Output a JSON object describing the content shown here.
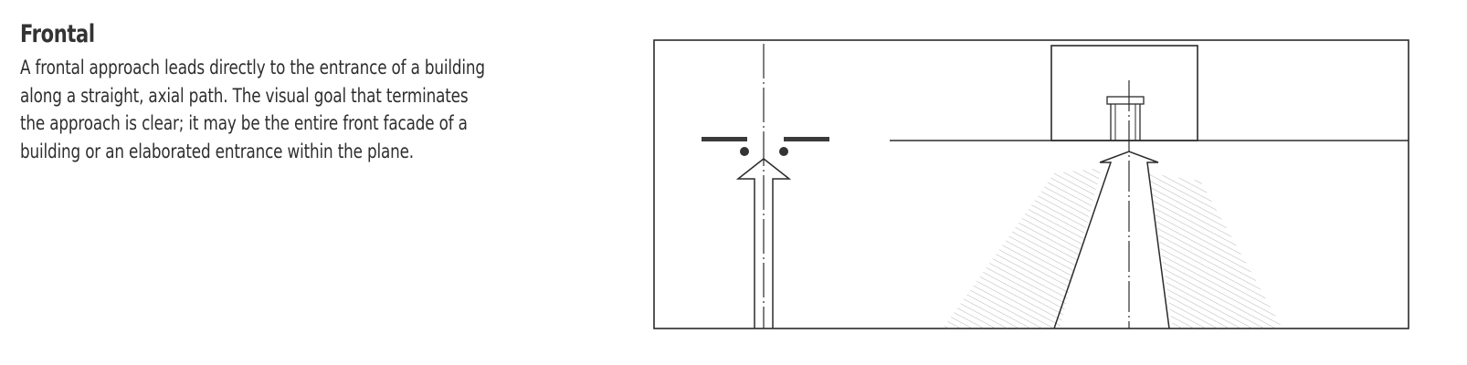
{
  "section": {
    "heading": "Frontal",
    "lines": [
      "A frontal approach leads directly to the entrance of a building",
      "along a straight, axial path. The visual goal that terminates",
      "the approach is clear; it may be the entire front facade of a",
      "building or an elaborated entrance within the plane."
    ]
  },
  "colors": {
    "text": "#2e2e2e",
    "ink": "#2b2b2b",
    "hatch": "#6a6a6a"
  },
  "icons": [
    "approach-arrow-icon",
    "entrance-arrow-icon"
  ]
}
